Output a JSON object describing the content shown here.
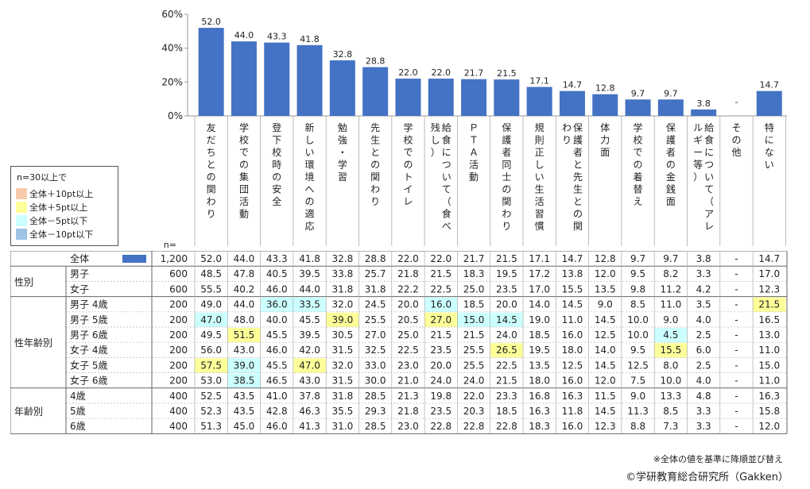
{
  "colors": {
    "bar": "#4472c4",
    "plus10": "#f8cbad",
    "plus5": "#ffff99",
    "minus5": "#ccffff",
    "minus10": "#9dc3e6"
  },
  "legend": {
    "title": "n=30以上で",
    "items": [
      {
        "label": "全体＋10pt以上",
        "color": "#f8cbad"
      },
      {
        "label": "全体＋5pt以上",
        "color": "#ffff99"
      },
      {
        "label": "全体－5pt以下",
        "color": "#ccffff"
      },
      {
        "label": "全体－10pt以下",
        "color": "#9dc3e6"
      }
    ]
  },
  "n_label": "n=",
  "footnote": "※全体の値を基準に降順並び替え",
  "credit": "©学研教育総合研究所（Gakken）",
  "chart_data": {
    "type": "bar",
    "categories": [
      "友だちとの関わり",
      "学校での集団活動",
      "登下校時の安全",
      "新しい環境への適応",
      "勉強・学習",
      "先生との関わり",
      "学校でのトイレ",
      "給食について（食べ残し）",
      "ＰＴＡ活動",
      "保護者同士の関わり",
      "規則正しい生活習慣",
      "保護者と先生との関わり",
      "体力面",
      "学校での着替え",
      "保護者の金銭面",
      "給食について（アレルギー等）",
      "その他",
      "特にない"
    ],
    "values": [
      52.0,
      44.0,
      43.3,
      41.8,
      32.8,
      28.8,
      22.0,
      22.0,
      21.7,
      21.5,
      17.1,
      14.7,
      12.8,
      9.7,
      9.7,
      3.8,
      null,
      14.7
    ],
    "value_labels": [
      "52.0",
      "44.0",
      "43.3",
      "41.8",
      "32.8",
      "28.8",
      "22.0",
      "22.0",
      "21.7",
      "21.5",
      "17.1",
      "14.7",
      "12.8",
      "9.7",
      "9.7",
      "3.8",
      "-",
      "14.7"
    ],
    "yticks": [
      "0%",
      "20%",
      "40%",
      "60%"
    ],
    "ylim": [
      0,
      60
    ]
  },
  "table": {
    "rows": [
      {
        "group": "",
        "label": "全体",
        "n": "1,200",
        "values": [
          "52.0",
          "44.0",
          "43.3",
          "41.8",
          "32.8",
          "28.8",
          "22.0",
          "22.0",
          "21.7",
          "21.5",
          "17.1",
          "14.7",
          "12.8",
          "9.7",
          "9.7",
          "3.8",
          "-",
          "14.7"
        ],
        "hl": {}
      },
      {
        "group": "性別",
        "label": "男子",
        "n": "600",
        "values": [
          "48.5",
          "47.8",
          "40.5",
          "39.5",
          "33.8",
          "25.7",
          "21.8",
          "21.5",
          "18.3",
          "19.5",
          "17.2",
          "13.8",
          "12.0",
          "9.5",
          "8.2",
          "3.3",
          "-",
          "17.0"
        ],
        "hl": {}
      },
      {
        "group": "",
        "label": "女子",
        "n": "600",
        "values": [
          "55.5",
          "40.2",
          "46.0",
          "44.0",
          "31.8",
          "31.8",
          "22.2",
          "22.5",
          "25.0",
          "23.5",
          "17.0",
          "15.5",
          "13.5",
          "9.8",
          "11.2",
          "4.2",
          "-",
          "12.3"
        ],
        "hl": {}
      },
      {
        "group": "性年齢別",
        "label": "男子 4歳",
        "n": "200",
        "values": [
          "49.0",
          "44.0",
          "36.0",
          "33.5",
          "32.0",
          "24.5",
          "20.0",
          "16.0",
          "18.5",
          "20.0",
          "14.0",
          "14.5",
          "9.0",
          "8.5",
          "11.0",
          "3.5",
          "-",
          "21.5"
        ],
        "hl": {
          "2": "m",
          "3": "m",
          "7": "m",
          "17": "p"
        }
      },
      {
        "group": "",
        "label": "男子 5歳",
        "n": "200",
        "values": [
          "47.0",
          "48.0",
          "40.0",
          "45.5",
          "39.0",
          "25.5",
          "20.5",
          "27.0",
          "15.0",
          "14.5",
          "19.0",
          "11.0",
          "14.5",
          "10.0",
          "9.0",
          "4.0",
          "-",
          "16.5"
        ],
        "hl": {
          "0": "m",
          "4": "p",
          "7": "p",
          "8": "m",
          "9": "m"
        }
      },
      {
        "group": "",
        "label": "男子 6歳",
        "n": "200",
        "values": [
          "49.5",
          "51.5",
          "45.5",
          "39.5",
          "30.5",
          "27.0",
          "25.0",
          "21.5",
          "21.5",
          "24.0",
          "18.5",
          "16.0",
          "12.5",
          "10.0",
          "4.5",
          "2.5",
          "-",
          "13.0"
        ],
        "hl": {
          "1": "p",
          "14": "m"
        }
      },
      {
        "group": "",
        "label": "女子 4歳",
        "n": "200",
        "values": [
          "56.0",
          "43.0",
          "46.0",
          "42.0",
          "31.5",
          "32.5",
          "22.5",
          "23.5",
          "25.5",
          "26.5",
          "19.5",
          "18.0",
          "14.0",
          "9.5",
          "15.5",
          "6.0",
          "-",
          "11.0"
        ],
        "hl": {
          "9": "p",
          "14": "p"
        }
      },
      {
        "group": "",
        "label": "女子 5歳",
        "n": "200",
        "values": [
          "57.5",
          "39.0",
          "45.5",
          "47.0",
          "32.0",
          "33.0",
          "23.0",
          "20.0",
          "25.5",
          "22.5",
          "13.5",
          "12.5",
          "14.5",
          "12.5",
          "8.0",
          "2.5",
          "-",
          "15.0"
        ],
        "hl": {
          "0": "p",
          "1": "m",
          "3": "p"
        }
      },
      {
        "group": "",
        "label": "女子 6歳",
        "n": "200",
        "values": [
          "53.0",
          "38.5",
          "46.5",
          "43.0",
          "31.5",
          "30.0",
          "21.0",
          "24.0",
          "24.0",
          "21.5",
          "18.0",
          "16.0",
          "12.0",
          "7.5",
          "10.0",
          "4.0",
          "-",
          "11.0"
        ],
        "hl": {
          "1": "m"
        }
      },
      {
        "group": "年齢別",
        "label": "4歳",
        "n": "400",
        "values": [
          "52.5",
          "43.5",
          "41.0",
          "37.8",
          "31.8",
          "28.5",
          "21.3",
          "19.8",
          "22.0",
          "23.3",
          "16.8",
          "16.3",
          "11.5",
          "9.0",
          "13.3",
          "4.8",
          "-",
          "16.3"
        ],
        "hl": {}
      },
      {
        "group": "",
        "label": "5歳",
        "n": "400",
        "values": [
          "52.3",
          "43.5",
          "42.8",
          "46.3",
          "35.5",
          "29.3",
          "21.8",
          "23.5",
          "20.3",
          "18.5",
          "16.3",
          "11.8",
          "14.5",
          "11.3",
          "8.5",
          "3.3",
          "-",
          "15.8"
        ],
        "hl": {}
      },
      {
        "group": "",
        "label": "6歳",
        "n": "400",
        "values": [
          "51.3",
          "45.0",
          "46.0",
          "41.3",
          "31.0",
          "28.5",
          "23.0",
          "22.8",
          "22.8",
          "22.8",
          "18.3",
          "16.0",
          "12.3",
          "8.8",
          "7.3",
          "3.3",
          "-",
          "12.0"
        ],
        "hl": {}
      }
    ]
  }
}
